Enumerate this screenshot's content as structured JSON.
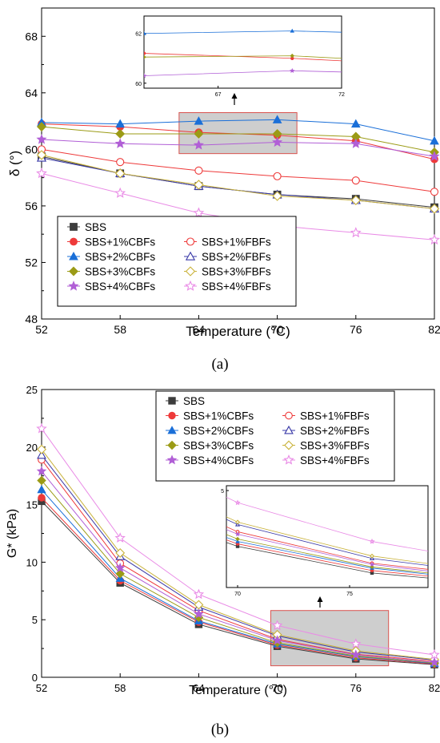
{
  "figure": {
    "caption_a": "(a)",
    "caption_b": "(b)"
  },
  "series_styles": [
    {
      "name": "SBS",
      "color": "#3c3c3c",
      "marker": "square",
      "filled": true
    },
    {
      "name": "SBS+1%CBFs",
      "color": "#ee3a3a",
      "marker": "circle",
      "filled": true
    },
    {
      "name": "SBS+1%FBFs",
      "color": "#ee3a3a",
      "marker": "circle",
      "filled": false
    },
    {
      "name": "SBS+2%CBFs",
      "color": "#1a6fd8",
      "marker": "triangle",
      "filled": true
    },
    {
      "name": "SBS+2%FBFs",
      "color": "#3a3aa8",
      "marker": "triangle",
      "filled": false
    },
    {
      "name": "SBS+3%CBFs",
      "color": "#9b9b16",
      "marker": "diamond",
      "filled": true
    },
    {
      "name": "SBS+3%FBFs",
      "color": "#c9b23a",
      "marker": "diamond",
      "filled": false
    },
    {
      "name": "SBS+4%CBFs",
      "color": "#b15fd6",
      "marker": "star",
      "filled": true
    },
    {
      "name": "SBS+4%FBFs",
      "color": "#e98be6",
      "marker": "star",
      "filled": false
    }
  ],
  "chart_data": [
    {
      "type": "line",
      "panel": "a",
      "xlabel": "Temperature (°C)",
      "ylabel": "δ (°)",
      "x": [
        52,
        58,
        64,
        70,
        76,
        82
      ],
      "xlim": [
        52,
        82
      ],
      "ylim": [
        48,
        70
      ],
      "yticks": [
        48,
        52,
        56,
        60,
        64,
        68
      ],
      "grid": false,
      "legend_position": "bottom-left",
      "series": [
        {
          "name": "SBS",
          "values": [
            59.5,
            58.3,
            57.4,
            56.8,
            56.5,
            55.9
          ]
        },
        {
          "name": "SBS+1%CBFs",
          "values": [
            61.8,
            61.6,
            61.2,
            61.0,
            60.6,
            59.3
          ]
        },
        {
          "name": "SBS+1%FBFs",
          "values": [
            60.0,
            59.1,
            58.5,
            58.1,
            57.8,
            57.0
          ]
        },
        {
          "name": "SBS+2%CBFs",
          "values": [
            61.9,
            61.8,
            62.0,
            62.1,
            61.8,
            60.6
          ]
        },
        {
          "name": "SBS+2%FBFs",
          "values": [
            59.4,
            58.3,
            57.4,
            56.8,
            56.4,
            55.8
          ]
        },
        {
          "name": "SBS+3%CBFs",
          "values": [
            61.6,
            61.1,
            61.1,
            61.1,
            60.9,
            59.8
          ]
        },
        {
          "name": "SBS+3%FBFs",
          "values": [
            59.6,
            58.3,
            57.5,
            56.7,
            56.4,
            55.8
          ]
        },
        {
          "name": "SBS+4%CBFs",
          "values": [
            60.7,
            60.4,
            60.3,
            60.5,
            60.4,
            59.5
          ]
        },
        {
          "name": "SBS+4%FBFs",
          "values": [
            58.3,
            56.9,
            55.5,
            54.6,
            54.1,
            53.6
          ]
        }
      ],
      "inset": {
        "xlim": [
          64,
          72
        ],
        "ylim": [
          59.8,
          62.7
        ],
        "xticks": [
          67,
          72
        ],
        "yticks": [
          60,
          62
        ],
        "series": [
          {
            "name": "SBS+2%CBFs",
            "x": [
              64,
              70,
              72
            ],
            "values": [
              62.0,
              62.1,
              62.05
            ]
          },
          {
            "name": "SBS+1%CBFs",
            "x": [
              64,
              70,
              72
            ],
            "values": [
              61.2,
              61.0,
              60.9
            ]
          },
          {
            "name": "SBS+3%CBFs",
            "x": [
              64,
              70,
              72
            ],
            "values": [
              61.05,
              61.1,
              61.0
            ]
          },
          {
            "name": "SBS+4%CBFs",
            "x": [
              64,
              70,
              72
            ],
            "values": [
              60.3,
              60.5,
              60.45
            ]
          }
        ]
      }
    },
    {
      "type": "line",
      "panel": "b",
      "xlabel": "Temperature (°C)",
      "ylabel": "G* (kPa)",
      "x": [
        52,
        58,
        64,
        70,
        76,
        82
      ],
      "xlim": [
        52,
        82
      ],
      "ylim": [
        0,
        25
      ],
      "yticks": [
        0,
        5,
        10,
        15,
        20,
        25
      ],
      "grid": false,
      "legend_position": "top-center",
      "series": [
        {
          "name": "SBS",
          "values": [
            15.3,
            8.2,
            4.6,
            2.7,
            1.6,
            1.1
          ]
        },
        {
          "name": "SBS+1%CBFs",
          "values": [
            15.6,
            8.4,
            4.8,
            2.8,
            1.7,
            1.15
          ]
        },
        {
          "name": "SBS+1%FBFs",
          "values": [
            18.9,
            9.9,
            5.8,
            3.3,
            2.0,
            1.4
          ]
        },
        {
          "name": "SBS+2%CBFs",
          "values": [
            16.3,
            8.6,
            4.9,
            2.9,
            1.8,
            1.2
          ]
        },
        {
          "name": "SBS+2%FBFs",
          "values": [
            19.3,
            10.5,
            6.1,
            3.6,
            2.2,
            1.5
          ]
        },
        {
          "name": "SBS+3%CBFs",
          "values": [
            17.1,
            9.0,
            5.2,
            3.0,
            1.85,
            1.25
          ]
        },
        {
          "name": "SBS+3%FBFs",
          "values": [
            19.8,
            10.8,
            6.3,
            3.7,
            2.3,
            1.55
          ]
        },
        {
          "name": "SBS+4%CBFs",
          "values": [
            17.9,
            9.5,
            5.5,
            3.2,
            1.95,
            1.3
          ]
        },
        {
          "name": "SBS+4%FBFs",
          "values": [
            21.6,
            12.1,
            7.2,
            4.5,
            2.9,
            1.95
          ]
        }
      ],
      "inset": {
        "xlim": [
          69.5,
          78.5
        ],
        "ylim": [
          1.0,
          5.2
        ],
        "xticks": [
          70,
          75
        ],
        "yticks": [
          5
        ],
        "series_from_main": true
      }
    }
  ]
}
